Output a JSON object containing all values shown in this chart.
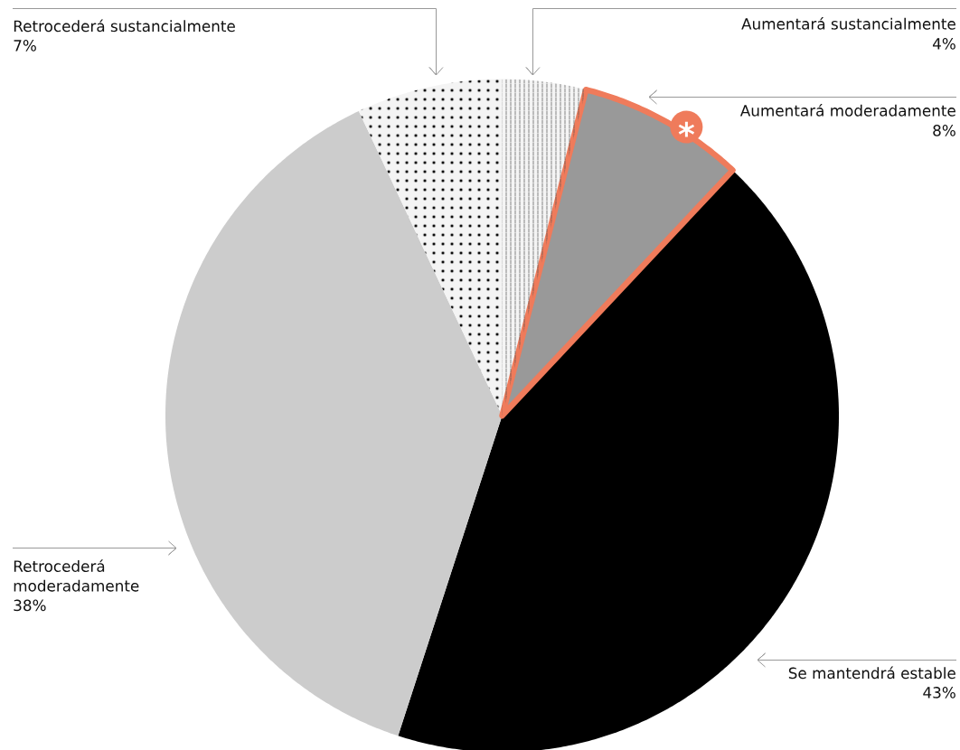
{
  "chart_data": {
    "type": "pie",
    "categories": [
      "Aumentará sustancialmente",
      "Aumentará moderadamente",
      "Se mantendrá estable",
      "Retrocederá moderadamente",
      "Retrocederá sustancialmente"
    ],
    "values": [
      4,
      8,
      43,
      38,
      7
    ],
    "colors": [
      "#f4f4f4",
      "#999999",
      "#000000",
      "#cccccc",
      "#f4f4f4"
    ],
    "value_labels": [
      "4%",
      "8%",
      "43%",
      "38%",
      "7%"
    ],
    "annotations": [
      {
        "text": "*",
        "x": "Aumentará moderadamente"
      }
    ]
  }
}
